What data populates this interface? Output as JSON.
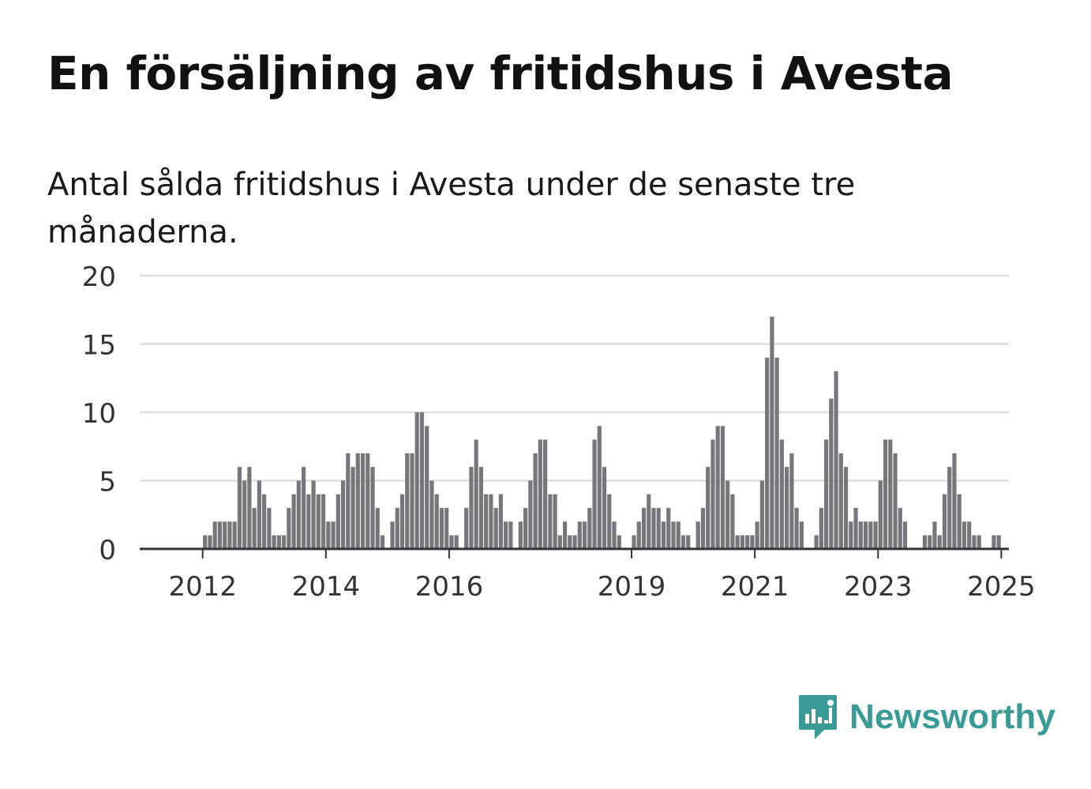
{
  "title": "En försäljning av fritidshus i Avesta",
  "subtitle": "Antal sålda fritidshus i Avesta under de senaste tre månaderna.",
  "brand": {
    "name": "Newsworthy",
    "color": "#3a9b96",
    "icon": "newsworthy-logo-icon"
  },
  "colors": {
    "bar": "#77767b",
    "highlight": "#1a9e93",
    "grid": "#dddddd",
    "axis": "#333333"
  },
  "chart_data": {
    "type": "bar",
    "xlabel": "",
    "ylabel": "",
    "ylim": [
      0,
      20
    ],
    "yticks": [
      0,
      5,
      10,
      15,
      20
    ],
    "grid": true,
    "x_start": "2011-04",
    "interval": "month",
    "xtick_labels": [
      {
        "label": "2012",
        "index": 9
      },
      {
        "label": "2014",
        "index": 34
      },
      {
        "label": "2016",
        "index": 59
      },
      {
        "label": "2019",
        "index": 96
      },
      {
        "label": "2021",
        "index": 121
      },
      {
        "label": "2023",
        "index": 146
      },
      {
        "label": "2025",
        "index": 171
      }
    ],
    "values": [
      0,
      0,
      0,
      0,
      0,
      0,
      0,
      0,
      0,
      1,
      1,
      2,
      2,
      2,
      2,
      2,
      6,
      5,
      6,
      3,
      5,
      4,
      3,
      1,
      1,
      1,
      3,
      4,
      5,
      6,
      4,
      5,
      4,
      4,
      2,
      2,
      4,
      5,
      7,
      6,
      7,
      7,
      7,
      6,
      3,
      1,
      0,
      2,
      3,
      4,
      7,
      7,
      10,
      10,
      9,
      5,
      4,
      3,
      3,
      1,
      1,
      0,
      3,
      6,
      8,
      6,
      4,
      4,
      3,
      4,
      2,
      2,
      0,
      2,
      3,
      5,
      7,
      8,
      8,
      4,
      4,
      1,
      2,
      1,
      1,
      2,
      2,
      3,
      8,
      9,
      6,
      4,
      2,
      1,
      0,
      0,
      1,
      2,
      3,
      4,
      3,
      3,
      2,
      3,
      2,
      2,
      1,
      1,
      0,
      2,
      3,
      6,
      8,
      9,
      9,
      5,
      4,
      1,
      1,
      1,
      1,
      2,
      5,
      14,
      17,
      14,
      8,
      6,
      7,
      3,
      2,
      0,
      0,
      1,
      3,
      8,
      11,
      13,
      7,
      6,
      2,
      3,
      2,
      2,
      2,
      2,
      5,
      8,
      8,
      7,
      3,
      2,
      0,
      0,
      0,
      1,
      1,
      2,
      1,
      4,
      6,
      7,
      4,
      2,
      2,
      1,
      1,
      0,
      0,
      1,
      1
    ],
    "highlight_index": 175,
    "highlight_label": "1"
  }
}
